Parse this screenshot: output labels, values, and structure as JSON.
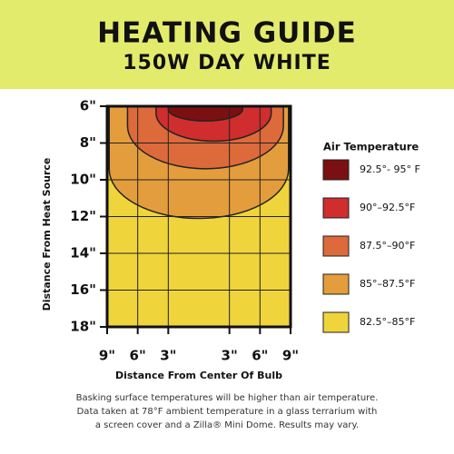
{
  "chart_data": {
    "type": "heat_zones",
    "title": "HEATING GUIDE",
    "subtitle": "150W DAY WHITE",
    "x_label": "Distance From Center Of Bulb",
    "y_label": "Distance From Heat Source",
    "xlim": [
      -9,
      9
    ],
    "xticks": [
      {
        "value": -9,
        "label": "9\""
      },
      {
        "value": -6,
        "label": "6\""
      },
      {
        "value": -3,
        "label": "3\""
      },
      {
        "value": 3,
        "label": "3\""
      },
      {
        "value": 6,
        "label": "6\""
      },
      {
        "value": 9,
        "label": "9\""
      }
    ],
    "ylim": [
      6,
      18
    ],
    "yticks": [
      {
        "value": 6,
        "label": "6\""
      },
      {
        "value": 8,
        "label": "8\""
      },
      {
        "value": 10,
        "label": "10\""
      },
      {
        "value": 12,
        "label": "12\""
      },
      {
        "value": 14,
        "label": "14\""
      },
      {
        "value": 16,
        "label": "16\""
      },
      {
        "value": 18,
        "label": "18\""
      }
    ],
    "grid": true,
    "legend_title": "Air Temperature",
    "zones": [
      {
        "name": "82.5°–85°F",
        "color": "#efd43c",
        "x": [
          -9,
          9
        ],
        "depth": 18
      },
      {
        "name": "85°–87.5°F",
        "color": "#e49d3c",
        "x": [
          -8.8,
          8.8
        ],
        "depth": 12.1
      },
      {
        "name": "87.5°–90°F",
        "color": "#dd6a3a",
        "x": [
          -7,
          8.3
        ],
        "depth": 9.4
      },
      {
        "name": "90°–92.5°F",
        "color": "#cf2d2e",
        "x": [
          -4.2,
          7.1
        ],
        "depth": 7.9
      },
      {
        "name": "92.5°- 95° F",
        "color": "#7a1012",
        "x": [
          -3,
          4.3
        ],
        "depth": 6.8
      }
    ],
    "note": [
      "Basking surface temperatures will be higher than air temperature.",
      "Data taken at 78°F ambient temperature in a glass terrarium with",
      "a screen cover and a Zilla® Mini Dome. Results may vary."
    ]
  }
}
